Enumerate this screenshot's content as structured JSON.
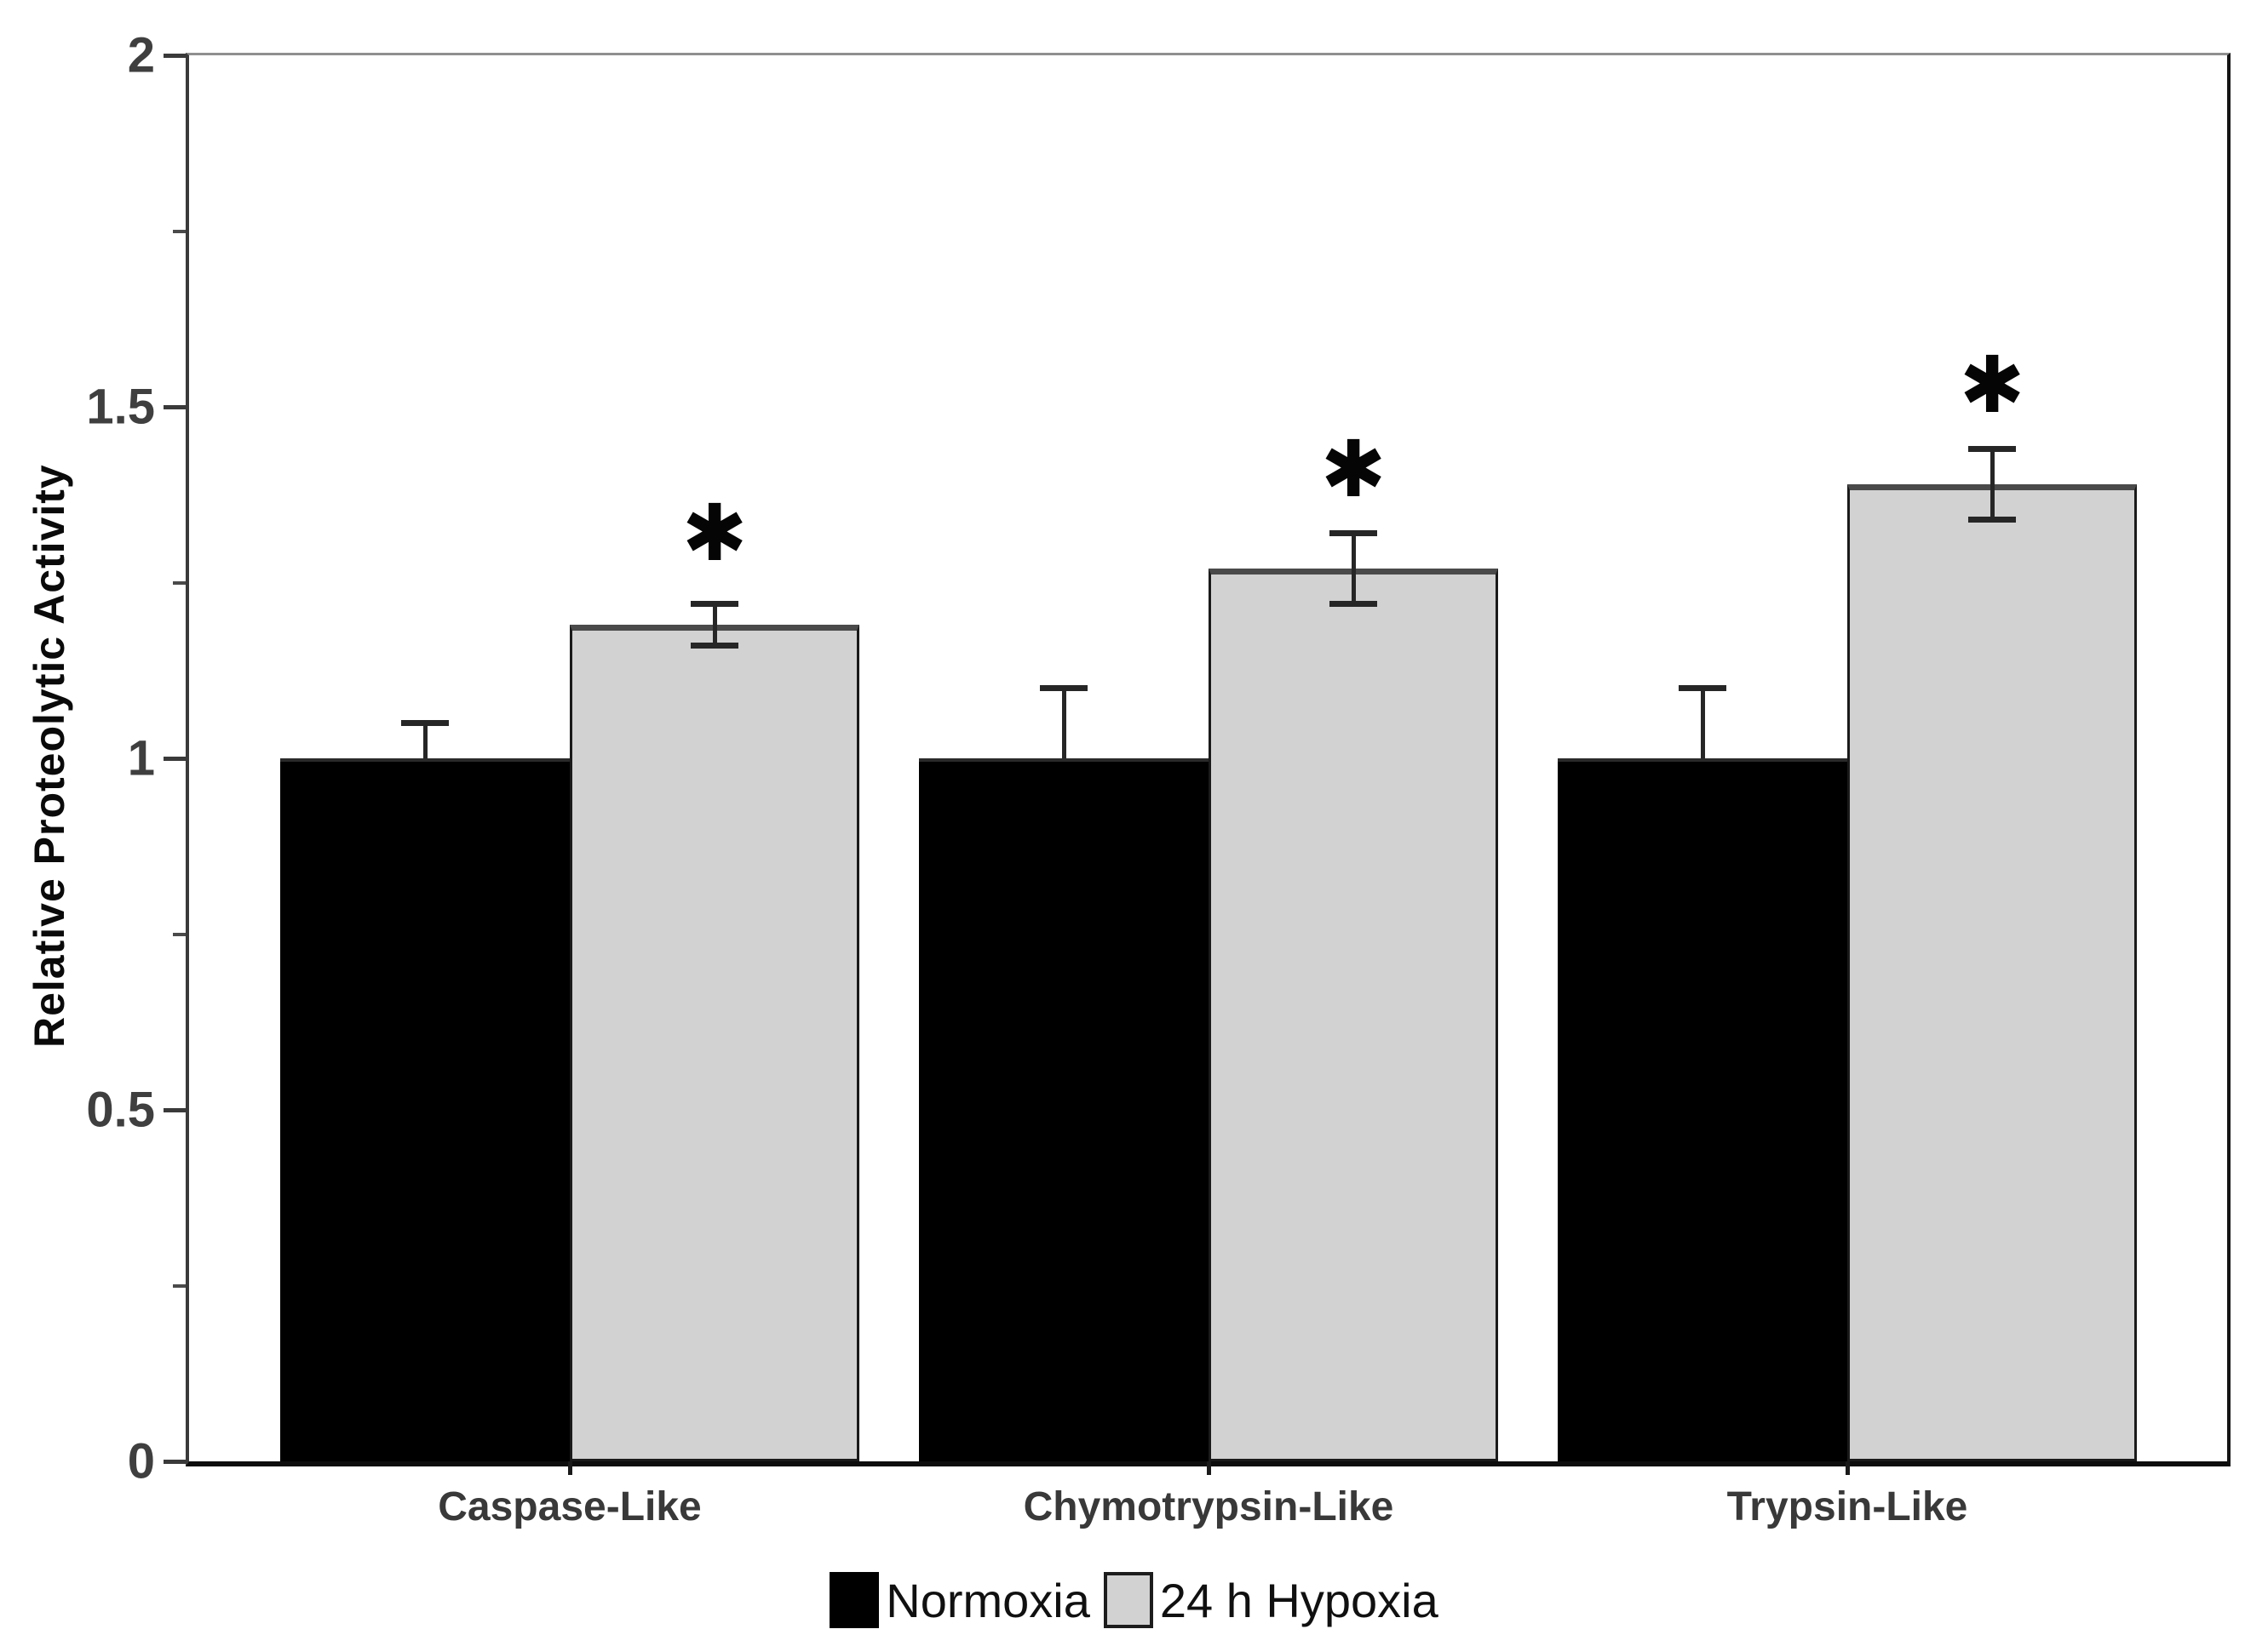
{
  "chart_data": {
    "type": "bar",
    "title": "",
    "categories": [
      "Caspase-Like",
      "Chymotrypsin-Like",
      "Trypsin-Like"
    ],
    "series": [
      {
        "name": "Normoxia",
        "color": "#000000",
        "values": [
          1.0,
          1.0,
          1.0
        ],
        "error_up": [
          0.05,
          0.1,
          0.1
        ],
        "error_down": [
          0,
          0,
          0
        ]
      },
      {
        "name": "24 h Hypoxia",
        "color": "#d2d2d2",
        "values": [
          1.19,
          1.27,
          1.39
        ],
        "error_up": [
          0.03,
          0.05,
          0.05
        ],
        "error_down": [
          0.03,
          0.05,
          0.05
        ]
      }
    ],
    "xlabel": "",
    "ylabel": "Relative Proteolytic Activity",
    "ylim": [
      0,
      2
    ],
    "yticks": [
      0,
      0.5,
      1,
      1.5,
      2
    ],
    "ytick_labels": [
      "0",
      "0.5",
      "1",
      "1.5",
      "2"
    ],
    "minor_yticks": [
      0.25,
      0.75,
      1.25,
      1.75
    ],
    "grid": false,
    "legend_position": "bottom-center",
    "significance": {
      "marker": "✱",
      "applies_to": "24 h Hypoxia",
      "y_positions": [
        1.32,
        1.41,
        1.53
      ]
    }
  },
  "legend": {
    "items": [
      {
        "label": "Normoxia",
        "swatch": "#000000"
      },
      {
        "label": "24 h Hypoxia",
        "swatch": "#d2d2d2"
      }
    ]
  }
}
